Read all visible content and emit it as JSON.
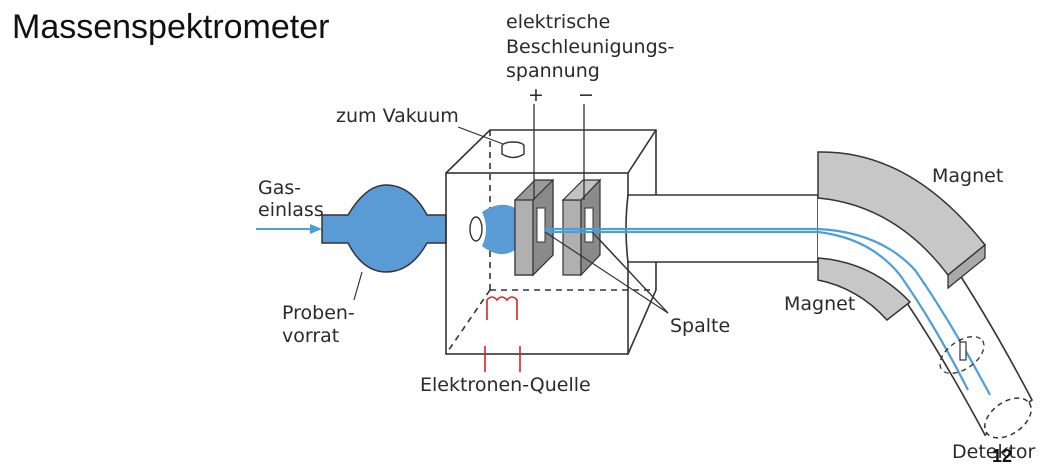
{
  "title": "Massenspektrometer",
  "labels": {
    "accel_line1": "elektrische",
    "accel_line2": "Beschleunigungs-",
    "accel_line3": "spannung",
    "plus": "+",
    "minus": "−",
    "vacuum": "zum Vakuum",
    "gas_line1": "Gas-",
    "gas_line2": "einlass",
    "sample_line1": "Proben-",
    "sample_line2": "vorrat",
    "magnet_top": "Magnet",
    "magnet_bottom": "Magnet",
    "slits": "Spalte",
    "electron_source": "Elektronen-Quelle",
    "detector": "Detektor"
  },
  "page_number": "12",
  "colors": {
    "flask": "#5b9bd5",
    "beam": "#4a9fd8",
    "magnet": "#c7c7c7",
    "plate": "#9a9a9a",
    "filament": "#d0262b"
  }
}
